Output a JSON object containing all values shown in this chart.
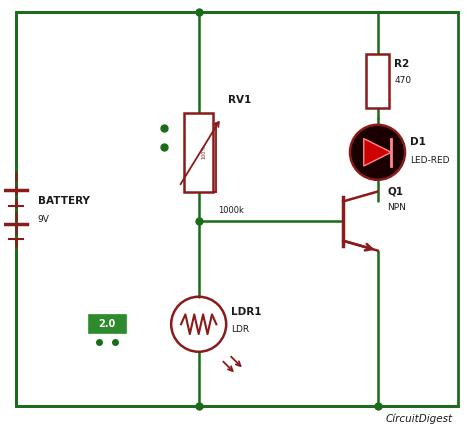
{
  "bg_color": "#ffffff",
  "border_color": "#1a6b1a",
  "wire_color": "#1a6b1a",
  "component_color": "#8b1a1a",
  "border_lw": 2.0,
  "wire_lw": 1.8,
  "component_lw": 1.8,
  "title_text": "CírcuitDigest",
  "battery_label": "BATTERY",
  "battery_value": "9V",
  "rv1_label": "RV1",
  "rv1_value": "1000k",
  "r2_label": "R2",
  "r2_value": "470",
  "d1_label": "D1",
  "d1_value": "LED-RED",
  "ldr_label": "LDR1",
  "ldr_value": "LDR",
  "q1_label": "Q1",
  "q1_value": "NPN",
  "green_box_text": "2.0",
  "led_color": "#1a0000",
  "green_box_color": "#2d8a2d",
  "dot_color": "#1a6b1a",
  "figsize": [
    4.74,
    4.25
  ],
  "dpi": 100
}
